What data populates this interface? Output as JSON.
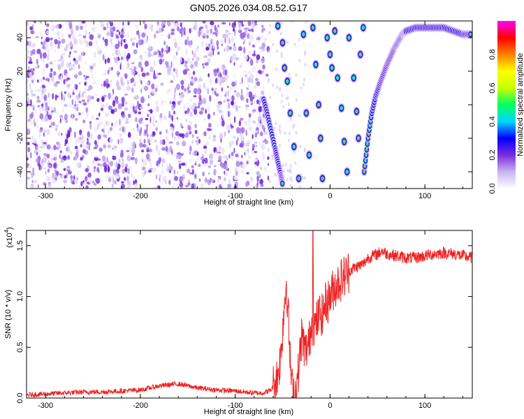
{
  "figure": {
    "title": "GN05.2026.034.08.52.G17"
  },
  "chart_data": [
    {
      "type": "heatmap",
      "title": "GN05.2026.034.08.52.G17",
      "xlabel": "Height of straight line (km)",
      "ylabel": "Frequency (Hz)",
      "xlim": [
        -320,
        150
      ],
      "ylim": [
        -50,
        50
      ],
      "xticks": [
        -300,
        -200,
        -100,
        0,
        100
      ],
      "yticks": [
        -40,
        -20,
        0,
        20,
        40
      ],
      "xtick_labels": [
        "-300",
        "-200",
        "-100",
        "0",
        "100"
      ],
      "ytick_labels": [
        "-40",
        "-20",
        "0",
        "20",
        "40"
      ],
      "colorbar": {
        "label": "Normalized spectral amplitude",
        "range": [
          0.0,
          1.0
        ],
        "ticks": [
          0.0,
          0.2,
          0.4,
          0.6,
          0.8
        ],
        "tick_labels": [
          "0.0",
          "0.2",
          "0.4",
          "0.6",
          "0.8"
        ],
        "colors": [
          "#ffffff",
          "#c8b4f0",
          "#7a2be0",
          "#0000ff",
          "#00d8ff",
          "#00ff60",
          "#c8ff00",
          "#ffff00",
          "#ff8000",
          "#ff0000",
          "#ff00ff"
        ]
      },
      "noise_region_x": [
        -320,
        -65
      ],
      "main_track": [
        {
          "x": -70,
          "y": 3
        },
        {
          "x": -66,
          "y": -6
        },
        {
          "x": -62,
          "y": -16
        },
        {
          "x": -58,
          "y": -26
        },
        {
          "x": -55,
          "y": -34
        },
        {
          "x": -52,
          "y": -42
        },
        {
          "x": -50,
          "y": -48
        },
        {
          "x": 36,
          "y": -40
        },
        {
          "x": 40,
          "y": -20
        },
        {
          "x": 44,
          "y": -5
        },
        {
          "x": 48,
          "y": 5
        },
        {
          "x": 52,
          "y": 12
        },
        {
          "x": 56,
          "y": 18
        },
        {
          "x": 60,
          "y": 24
        },
        {
          "x": 64,
          "y": 29
        },
        {
          "x": 68,
          "y": 34
        },
        {
          "x": 72,
          "y": 38
        },
        {
          "x": 76,
          "y": 42
        },
        {
          "x": 80,
          "y": 44
        },
        {
          "x": 90,
          "y": 46
        },
        {
          "x": 100,
          "y": 46
        },
        {
          "x": 110,
          "y": 46
        },
        {
          "x": 120,
          "y": 46
        },
        {
          "x": 130,
          "y": 44
        },
        {
          "x": 140,
          "y": 42
        },
        {
          "x": 148,
          "y": 42
        }
      ],
      "spots": [
        {
          "x": -55,
          "y": 47
        },
        {
          "x": -50,
          "y": 37
        },
        {
          "x": -48,
          "y": 22
        },
        {
          "x": -45,
          "y": 14
        },
        {
          "x": -42,
          "y": -5
        },
        {
          "x": -38,
          "y": -25
        },
        {
          "x": -33,
          "y": -44
        },
        {
          "x": -28,
          "y": 42
        },
        {
          "x": -25,
          "y": -5
        },
        {
          "x": -22,
          "y": -30
        },
        {
          "x": -18,
          "y": 46
        },
        {
          "x": -15,
          "y": 24
        },
        {
          "x": -12,
          "y": 0
        },
        {
          "x": -10,
          "y": -20
        },
        {
          "x": -8,
          "y": -44
        },
        {
          "x": -3,
          "y": 40
        },
        {
          "x": 0,
          "y": 30
        },
        {
          "x": 2,
          "y": 22
        },
        {
          "x": 5,
          "y": 44
        },
        {
          "x": 8,
          "y": 16
        },
        {
          "x": 12,
          "y": -2
        },
        {
          "x": 15,
          "y": -22
        },
        {
          "x": 18,
          "y": -40
        },
        {
          "x": 20,
          "y": 40
        },
        {
          "x": 25,
          "y": 16
        },
        {
          "x": 28,
          "y": -4
        },
        {
          "x": 30,
          "y": -20
        },
        {
          "x": 32,
          "y": 30
        },
        {
          "x": 35,
          "y": 46
        }
      ]
    },
    {
      "type": "line",
      "xlabel": "Height of straight line (km)",
      "ylabel": "SNR (10 * v/v)",
      "y_multiplier_label": "(x10",
      "y_multiplier_exp": "4",
      "y_multiplier_close": ")",
      "xlim": [
        -320,
        150
      ],
      "ylim": [
        0,
        1.65
      ],
      "xticks": [
        -300,
        -200,
        -100,
        0,
        100
      ],
      "yticks": [
        0.0,
        0.5,
        1.0,
        1.5
      ],
      "xtick_labels": [
        "-300",
        "-200",
        "-100",
        "0",
        "100"
      ],
      "ytick_labels": [
        "0.0",
        "0.5",
        "1.0",
        "1.5"
      ],
      "line_color": "#ee2222",
      "series": [
        {
          "x": [
            -320,
            -300,
            -280,
            -260,
            -240,
            -220,
            -200,
            -180,
            -160,
            -140,
            -120,
            -100,
            -80,
            -70,
            -62,
            -56,
            -52,
            -48,
            -46,
            -44,
            -42,
            -40,
            -38,
            -36,
            -34,
            -32,
            -30,
            -28,
            -26,
            -24,
            -22,
            -20,
            -18,
            -16,
            -14,
            -12,
            -10,
            -8,
            -6,
            -4,
            -2,
            0,
            5,
            10,
            15,
            20,
            25,
            30,
            35,
            40,
            45,
            50,
            55,
            60,
            70,
            80,
            90,
            100,
            110,
            120,
            130,
            140,
            150
          ],
          "values": [
            0.03,
            0.04,
            0.05,
            0.06,
            0.06,
            0.07,
            0.08,
            0.12,
            0.14,
            0.1,
            0.08,
            0.07,
            0.05,
            0.05,
            0.08,
            0.2,
            0.4,
            0.95,
            1.15,
            0.8,
            0.35,
            0.1,
            0.05,
            0.08,
            0.2,
            0.4,
            0.6,
            0.55,
            0.45,
            0.5,
            0.55,
            0.7,
            0.75,
            0.7,
            0.75,
            0.8,
            0.85,
            0.8,
            0.9,
            0.95,
            0.95,
            1.0,
            1.1,
            1.15,
            1.2,
            1.25,
            1.28,
            1.3,
            1.32,
            1.38,
            1.4,
            1.42,
            1.45,
            1.42,
            1.4,
            1.38,
            1.38,
            1.4,
            1.42,
            1.43,
            1.42,
            1.4,
            1.38
          ]
        }
      ]
    }
  ]
}
